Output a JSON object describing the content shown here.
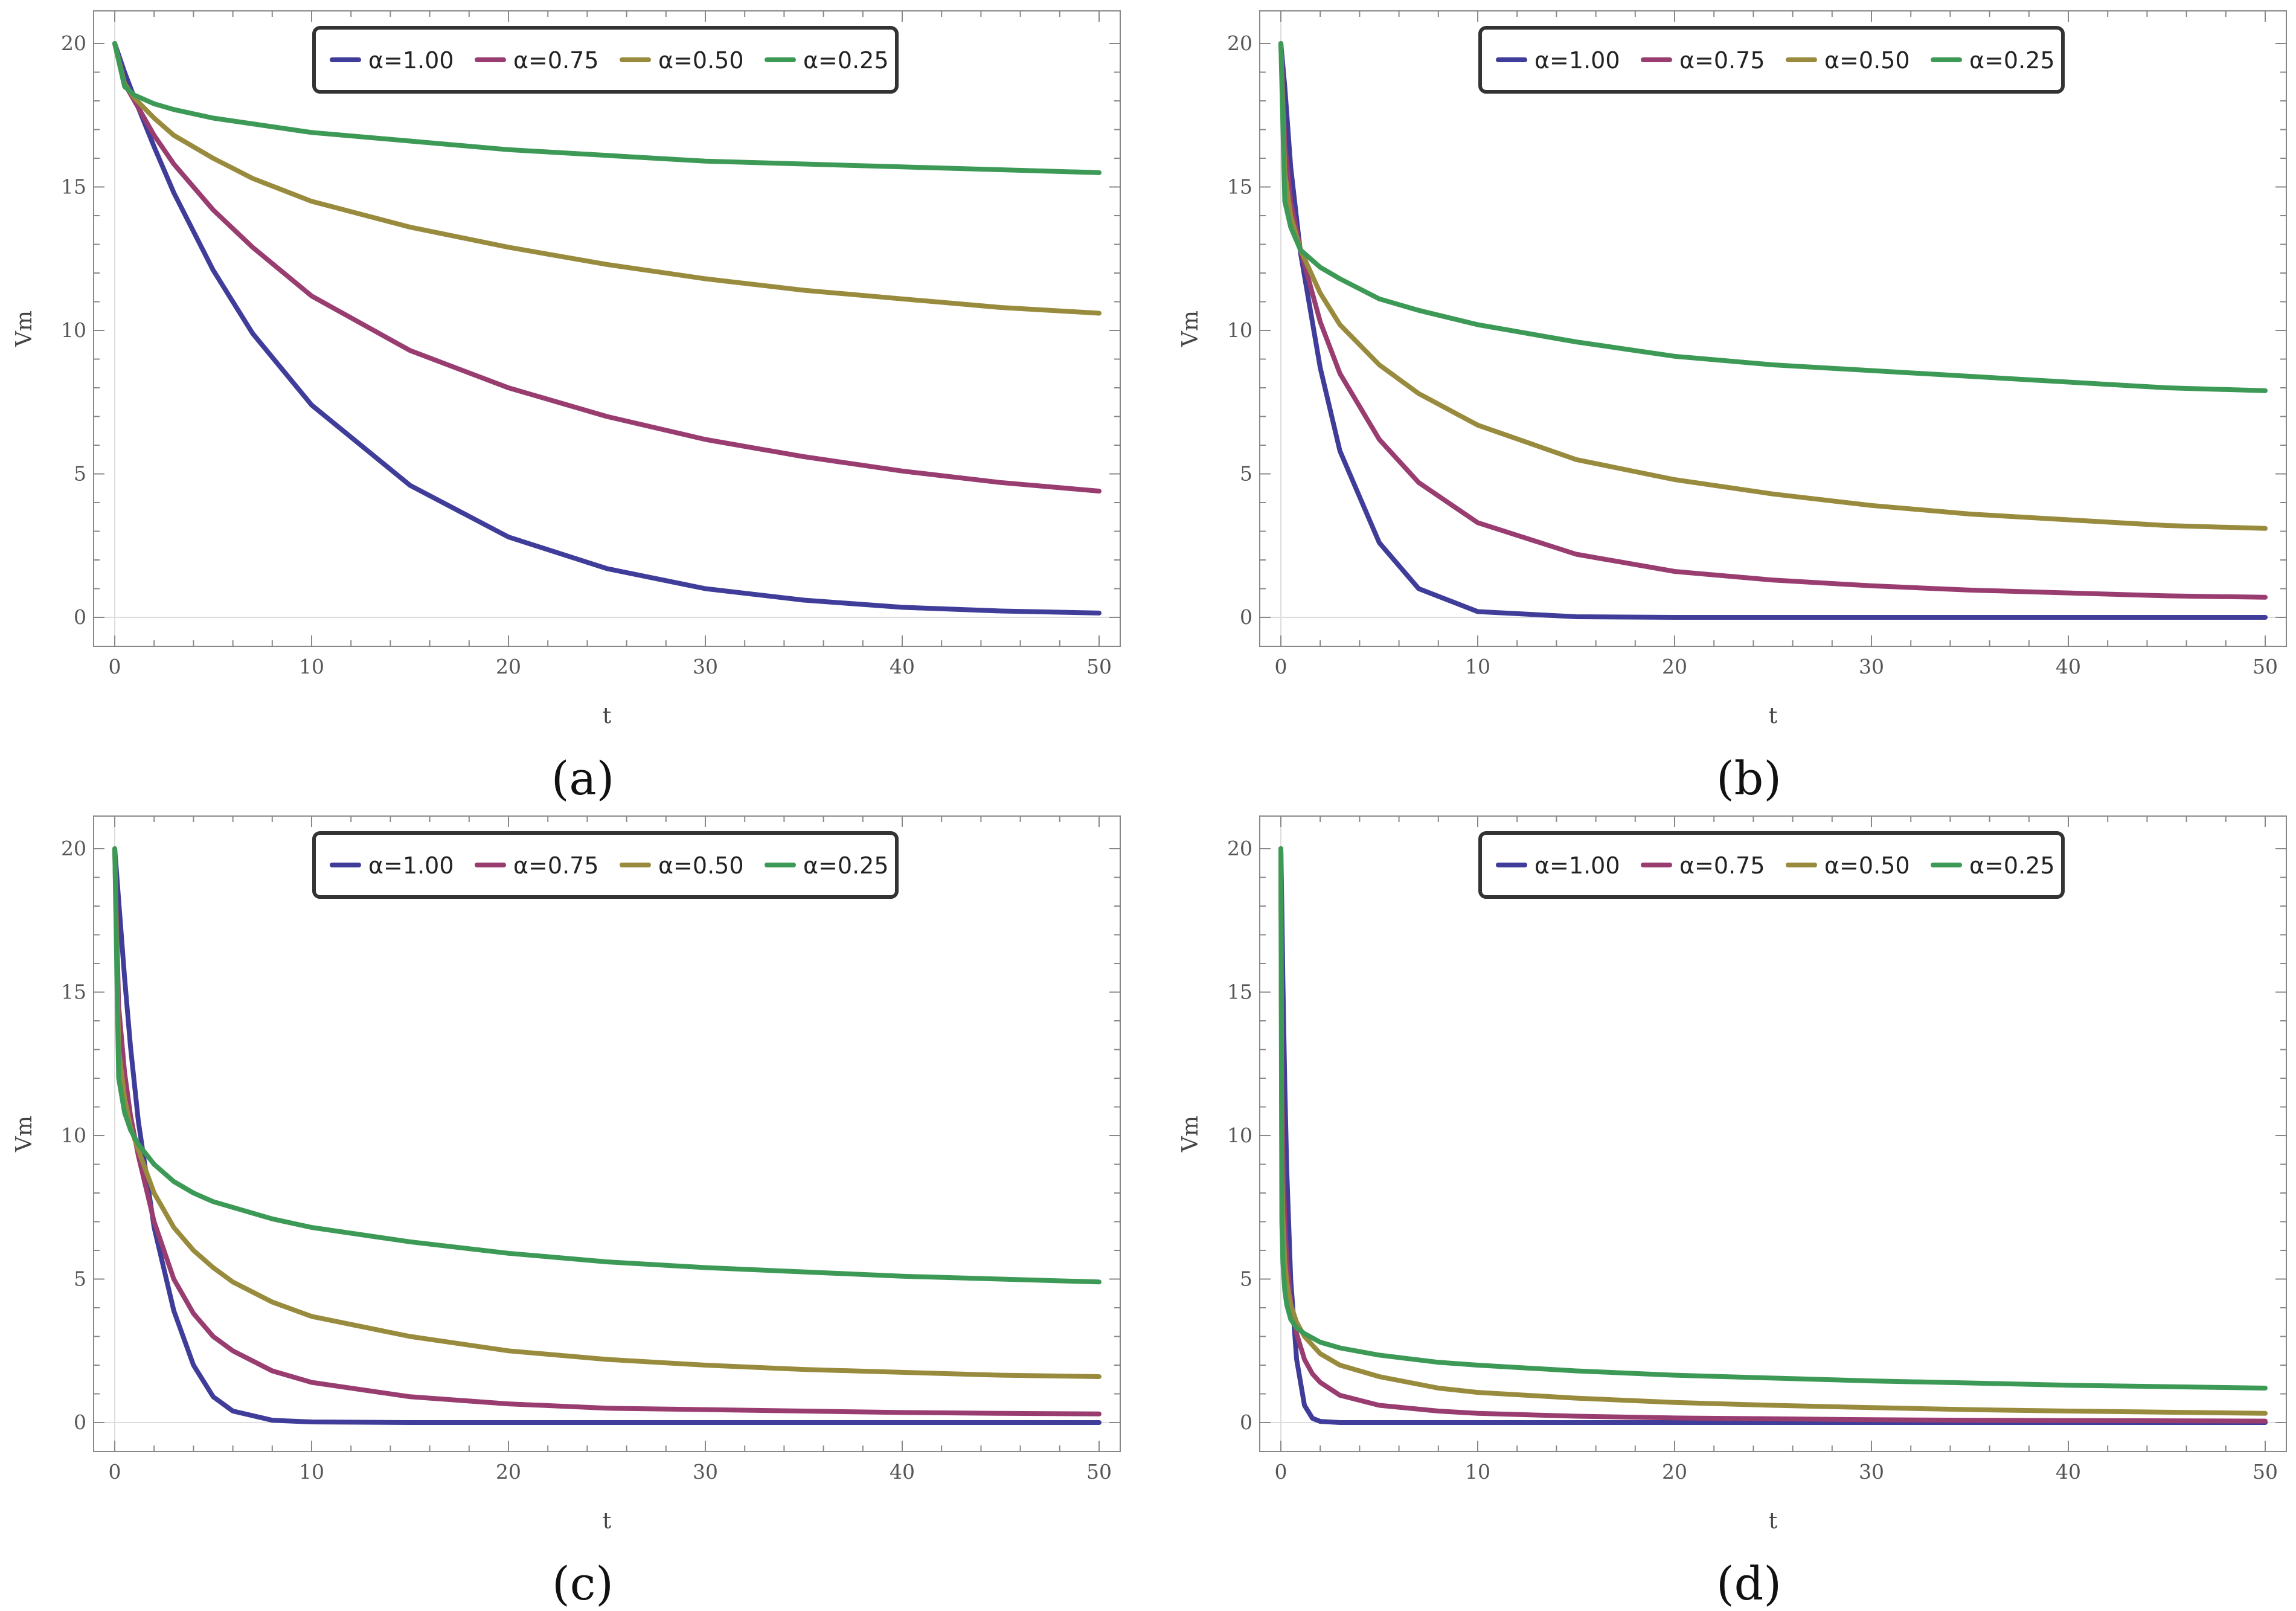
{
  "colors": {
    "alpha_1_00": "#3F3D99",
    "alpha_0_75": "#993D71",
    "alpha_0_50": "#998B3D",
    "alpha_0_25": "#3D9956",
    "axis": "#888888",
    "zero_line": "#dddddd"
  },
  "chart_data": [
    {
      "panel": "(a)",
      "type": "line",
      "xlabel": "t",
      "ylabel": "Vm",
      "xlim": [
        0,
        50
      ],
      "ylim": [
        0,
        20
      ],
      "xticks": [
        0,
        10,
        20,
        30,
        40,
        50
      ],
      "yticks": [
        0,
        5,
        10,
        15,
        20
      ],
      "legend": [
        "α=1.00",
        "α=0.75",
        "α=0.50",
        "α=0.25"
      ],
      "x": [
        0,
        0.5,
        1,
        2,
        3,
        5,
        7,
        10,
        15,
        20,
        25,
        30,
        35,
        40,
        45,
        50
      ],
      "series": [
        {
          "name": "α=1.00",
          "color_key": "alpha_1_00",
          "values": [
            20,
            19.0,
            18.1,
            16.4,
            14.8,
            12.1,
            9.9,
            7.4,
            4.6,
            2.8,
            1.7,
            1.0,
            0.6,
            0.35,
            0.22,
            0.15
          ]
        },
        {
          "name": "α=0.75",
          "color_key": "alpha_0_75",
          "values": [
            20,
            18.6,
            18.0,
            16.8,
            15.8,
            14.2,
            12.9,
            11.2,
            9.3,
            8.0,
            7.0,
            6.2,
            5.6,
            5.1,
            4.7,
            4.4
          ]
        },
        {
          "name": "α=0.50",
          "color_key": "alpha_0_50",
          "values": [
            20,
            18.6,
            18.1,
            17.4,
            16.8,
            16.0,
            15.3,
            14.5,
            13.6,
            12.9,
            12.3,
            11.8,
            11.4,
            11.1,
            10.8,
            10.6
          ]
        },
        {
          "name": "α=0.25",
          "color_key": "alpha_0_25",
          "values": [
            20,
            18.5,
            18.2,
            17.9,
            17.7,
            17.4,
            17.2,
            16.9,
            16.6,
            16.3,
            16.1,
            15.9,
            15.8,
            15.7,
            15.6,
            15.5
          ]
        }
      ]
    },
    {
      "panel": "(b)",
      "type": "line",
      "xlabel": "t",
      "ylabel": "Vm",
      "xlim": [
        0,
        50
      ],
      "ylim": [
        0,
        20
      ],
      "xticks": [
        0,
        10,
        20,
        30,
        40,
        50
      ],
      "yticks": [
        0,
        5,
        10,
        15,
        20
      ],
      "legend": [
        "α=1.00",
        "α=0.75",
        "α=0.50",
        "α=0.25"
      ],
      "x": [
        0,
        0.2,
        0.5,
        1,
        2,
        3,
        5,
        7,
        10,
        15,
        20,
        25,
        30,
        35,
        40,
        45,
        50
      ],
      "series": [
        {
          "name": "α=1.00",
          "color_key": "alpha_1_00",
          "values": [
            20,
            18.5,
            15.7,
            12.7,
            8.7,
            5.8,
            2.6,
            1.0,
            0.2,
            0.02,
            0,
            0,
            0,
            0,
            0,
            0,
            0
          ]
        },
        {
          "name": "α=0.75",
          "color_key": "alpha_0_75",
          "values": [
            20,
            16.5,
            14.5,
            12.8,
            10.3,
            8.5,
            6.2,
            4.7,
            3.3,
            2.2,
            1.6,
            1.3,
            1.1,
            0.95,
            0.85,
            0.75,
            0.7
          ]
        },
        {
          "name": "α=0.50",
          "color_key": "alpha_0_50",
          "values": [
            20,
            15.5,
            14.0,
            12.8,
            11.3,
            10.2,
            8.8,
            7.8,
            6.7,
            5.5,
            4.8,
            4.3,
            3.9,
            3.6,
            3.4,
            3.2,
            3.1
          ]
        },
        {
          "name": "α=0.25",
          "color_key": "alpha_0_25",
          "values": [
            20,
            14.5,
            13.6,
            12.8,
            12.2,
            11.8,
            11.1,
            10.7,
            10.2,
            9.6,
            9.1,
            8.8,
            8.6,
            8.4,
            8.2,
            8.0,
            7.9
          ]
        }
      ]
    },
    {
      "panel": "(c)",
      "type": "line",
      "xlabel": "t",
      "ylabel": "Vm",
      "xlim": [
        0,
        50
      ],
      "ylim": [
        0,
        20
      ],
      "xticks": [
        0,
        10,
        20,
        30,
        40,
        50
      ],
      "yticks": [
        0,
        5,
        10,
        15,
        20
      ],
      "legend": [
        "α=1.00",
        "α=0.75",
        "α=0.50",
        "α=0.25"
      ],
      "x": [
        0,
        0.2,
        0.5,
        0.8,
        1.2,
        2,
        3,
        4,
        5,
        6,
        8,
        10,
        15,
        20,
        25,
        30,
        35,
        40,
        45,
        50
      ],
      "series": [
        {
          "name": "α=1.00",
          "color_key": "alpha_1_00",
          "values": [
            20,
            18.2,
            15.5,
            13.1,
            10.5,
            6.8,
            3.9,
            2.0,
            0.9,
            0.4,
            0.08,
            0.02,
            0,
            0,
            0,
            0,
            0,
            0,
            0,
            0
          ]
        },
        {
          "name": "α=0.75",
          "color_key": "alpha_0_75",
          "values": [
            20,
            14.5,
            12.2,
            10.7,
            9.3,
            7.0,
            5.0,
            3.8,
            3.0,
            2.5,
            1.8,
            1.4,
            0.9,
            0.65,
            0.5,
            0.45,
            0.4,
            0.35,
            0.32,
            0.3
          ]
        },
        {
          "name": "α=0.50",
          "color_key": "alpha_0_50",
          "values": [
            20,
            13.0,
            11.3,
            10.3,
            9.5,
            8.0,
            6.8,
            6.0,
            5.4,
            4.9,
            4.2,
            3.7,
            3.0,
            2.5,
            2.2,
            2.0,
            1.85,
            1.75,
            1.65,
            1.6
          ]
        },
        {
          "name": "α=0.25",
          "color_key": "alpha_0_25",
          "values": [
            20,
            12.0,
            10.8,
            10.2,
            9.7,
            9.0,
            8.4,
            8.0,
            7.7,
            7.5,
            7.1,
            6.8,
            6.3,
            5.9,
            5.6,
            5.4,
            5.25,
            5.1,
            5.0,
            4.9
          ]
        }
      ]
    },
    {
      "panel": "(d)",
      "type": "line",
      "xlabel": "t",
      "ylabel": "Vm",
      "xlim": [
        0,
        50
      ],
      "ylim": [
        0,
        20
      ],
      "xticks": [
        0,
        10,
        20,
        30,
        40,
        50
      ],
      "yticks": [
        0,
        5,
        10,
        15,
        20
      ],
      "legend": [
        "α=1.00",
        "α=0.75",
        "α=0.50",
        "α=0.25"
      ],
      "x": [
        0,
        0.05,
        0.1,
        0.2,
        0.3,
        0.5,
        0.8,
        1.2,
        1.6,
        2,
        3,
        5,
        8,
        10,
        15,
        20,
        25,
        30,
        35,
        40,
        45,
        50
      ],
      "series": [
        {
          "name": "α=1.00",
          "color_key": "alpha_1_00",
          "values": [
            20,
            18.0,
            15.5,
            11.8,
            8.8,
            5.0,
            2.2,
            0.6,
            0.15,
            0.04,
            0,
            0,
            0,
            0,
            0,
            0,
            0,
            0,
            0,
            0,
            0,
            0
          ]
        },
        {
          "name": "α=0.75",
          "color_key": "alpha_0_75",
          "values": [
            20,
            12.0,
            9.5,
            7.0,
            5.7,
            4.2,
            3.1,
            2.2,
            1.7,
            1.4,
            0.95,
            0.6,
            0.4,
            0.32,
            0.22,
            0.16,
            0.13,
            0.1,
            0.08,
            0.07,
            0.06,
            0.05
          ]
        },
        {
          "name": "α=0.50",
          "color_key": "alpha_0_50",
          "values": [
            20,
            9.0,
            7.2,
            5.6,
            4.9,
            4.1,
            3.5,
            3.0,
            2.7,
            2.4,
            2.0,
            1.6,
            1.2,
            1.05,
            0.85,
            0.7,
            0.6,
            0.52,
            0.45,
            0.4,
            0.36,
            0.32
          ]
        },
        {
          "name": "α=0.25",
          "color_key": "alpha_0_25",
          "values": [
            20,
            7.0,
            5.6,
            4.6,
            4.1,
            3.6,
            3.3,
            3.1,
            2.95,
            2.8,
            2.6,
            2.35,
            2.1,
            2.0,
            1.8,
            1.65,
            1.55,
            1.45,
            1.38,
            1.3,
            1.25,
            1.2
          ]
        }
      ]
    }
  ]
}
